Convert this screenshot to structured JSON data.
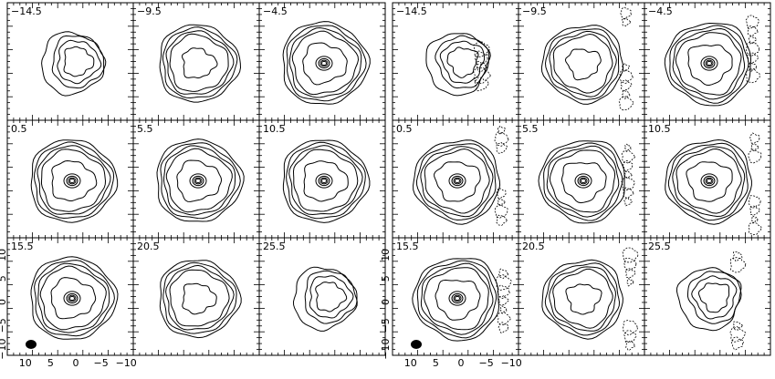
{
  "figure": {
    "groups": [
      {
        "name": "left",
        "style": "filled",
        "panels": [
          {
            "label": "−14.5",
            "shape": "blob"
          },
          {
            "label": "−9.5",
            "shape": "ring-thick"
          },
          {
            "label": "−4.5",
            "shape": "ring-core"
          },
          {
            "label": "0.5",
            "shape": "ring-core"
          },
          {
            "label": "5.5",
            "shape": "ring-core"
          },
          {
            "label": "10.5",
            "shape": "ring-core"
          },
          {
            "label": "15.5",
            "shape": "ring-core"
          },
          {
            "label": "20.5",
            "shape": "ring-thick"
          },
          {
            "label": "25.5",
            "shape": "blob"
          }
        ]
      },
      {
        "name": "right",
        "style": "lines",
        "panels": [
          {
            "label": "−14.5",
            "shape": "blob"
          },
          {
            "label": "−9.5",
            "shape": "ring-thick"
          },
          {
            "label": "−4.5",
            "shape": "ring-core"
          },
          {
            "label": "0.5",
            "shape": "ring-core"
          },
          {
            "label": "5.5",
            "shape": "ring-core"
          },
          {
            "label": "10.5",
            "shape": "ring-core"
          },
          {
            "label": "15.5",
            "shape": "ring-core"
          },
          {
            "label": "20.5",
            "shape": "ring-thick"
          },
          {
            "label": "25.5",
            "shape": "blob"
          }
        ]
      }
    ],
    "axes": {
      "x_tick_labels": [
        "10",
        "5",
        "0",
        "−5",
        "−10"
      ],
      "y_tick_labels": [
        "10",
        "5",
        "0",
        "−5",
        "−10"
      ]
    },
    "colors": {
      "line": "#000000",
      "fill_light": "#e6e6e6",
      "fill_mid": "#c8c8c8",
      "fill_dark": "#8c8c8c",
      "beam": "#000000"
    }
  }
}
